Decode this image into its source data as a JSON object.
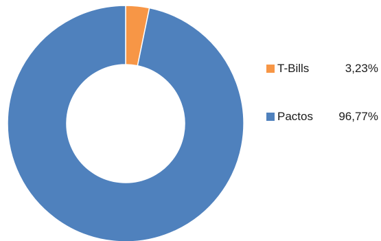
{
  "chart_data": {
    "type": "pie",
    "donut": true,
    "title": "",
    "legend_position": "right",
    "start_angle_deg": 0,
    "slices": [
      {
        "label": "T-Bills",
        "value": 3.23,
        "value_label": "3,23%",
        "color": "#f79646"
      },
      {
        "label": "Pactos",
        "value": 96.77,
        "value_label": "96,77%",
        "color": "#4f81bd"
      }
    ]
  }
}
